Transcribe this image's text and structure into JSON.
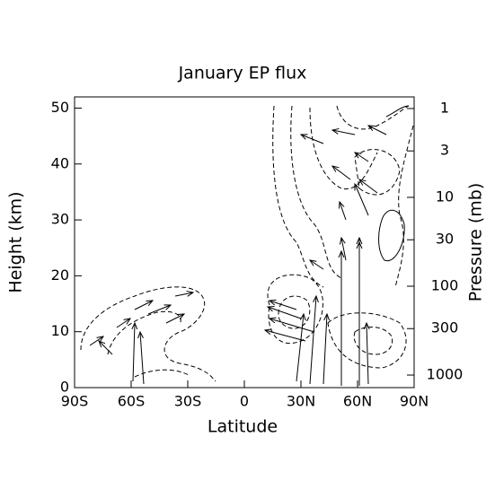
{
  "chart_data": {
    "type": "contour",
    "title": "January  EP flux",
    "xlabel": "Latitude",
    "ylabel": "Height (km)",
    "y2label": "Pressure (mb)",
    "xlim": [
      -90,
      90
    ],
    "xticks": [
      {
        "value": -90,
        "label": "90S"
      },
      {
        "value": -60,
        "label": "60S"
      },
      {
        "value": -30,
        "label": "30S"
      },
      0,
      {
        "value": 30,
        "label": "30N"
      },
      {
        "value": 60,
        "label": "60N"
      },
      {
        "value": 90,
        "label": "90N"
      }
    ],
    "ylim": [
      0,
      52
    ],
    "yticks": [
      0,
      10,
      20,
      30,
      40,
      50
    ],
    "y2lim": [
      1384,
      0.74
    ],
    "y2log": true,
    "y2ticks": [
      1,
      3,
      10,
      30,
      100,
      300,
      1000
    ]
  }
}
